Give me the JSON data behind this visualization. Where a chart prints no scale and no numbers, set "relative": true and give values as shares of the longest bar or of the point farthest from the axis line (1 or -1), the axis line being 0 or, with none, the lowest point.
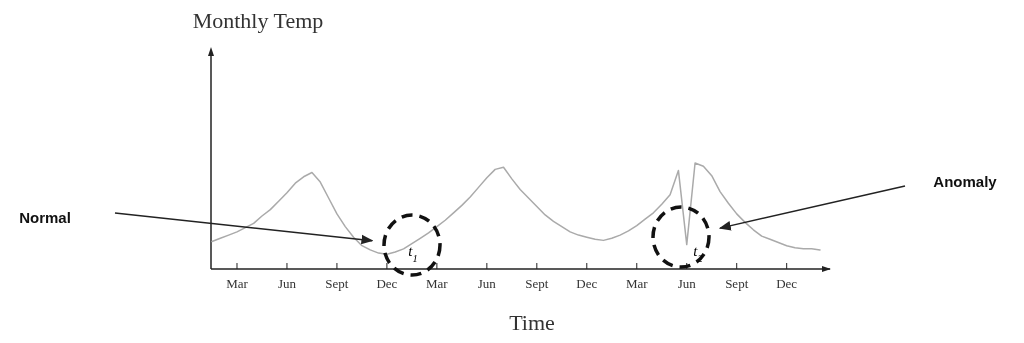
{
  "chart_data": {
    "type": "line",
    "relative": true,
    "title": "Monthly Temp",
    "xlabel": "Time",
    "categories": [
      null,
      null,
      null,
      "Mar",
      null,
      null,
      null,
      null,
      null,
      "Jun",
      null,
      null,
      null,
      null,
      null,
      "Sept",
      null,
      null,
      null,
      null,
      null,
      "Dec",
      null,
      null,
      null,
      null,
      null,
      "Mar",
      null,
      null,
      null,
      null,
      null,
      "Jun",
      null,
      null,
      null,
      null,
      null,
      "Sept",
      null,
      null,
      null,
      null,
      null,
      "Dec",
      null,
      null,
      null,
      null,
      null,
      "Mar",
      null,
      null,
      null,
      null,
      null,
      "Jun",
      null,
      null,
      null,
      null,
      null,
      "Sept",
      null,
      null,
      null,
      null,
      null,
      "Dec",
      null,
      null,
      null,
      null
    ],
    "series": [
      {
        "color": "#aaaaaa",
        "values": [
          0.26,
          0.29,
          0.32,
          0.35,
          0.39,
          0.43,
          0.5,
          0.56,
          0.64,
          0.72,
          0.81,
          0.87,
          0.91,
          0.82,
          0.67,
          0.52,
          0.4,
          0.3,
          0.22,
          0.18,
          0.15,
          0.14,
          0.16,
          0.19,
          0.24,
          0.29,
          0.34,
          0.4,
          0.46,
          0.53,
          0.6,
          0.68,
          0.77,
          0.86,
          0.94,
          0.96,
          0.85,
          0.75,
          0.67,
          0.59,
          0.51,
          0.45,
          0.4,
          0.35,
          0.32,
          0.3,
          0.28,
          0.27,
          0.29,
          0.32,
          0.36,
          0.41,
          0.47,
          0.53,
          0.61,
          0.7,
          0.93,
          0.23,
          1.0,
          0.97,
          0.88,
          0.73,
          0.62,
          0.52,
          0.44,
          0.37,
          0.31,
          0.28,
          0.25,
          0.22,
          0.2,
          0.19,
          0.19,
          0.18
        ]
      }
    ],
    "annotations": [
      "Normal",
      "Anomaly",
      "t$_{1}$",
      "t$_{2}$"
    ]
  }
}
